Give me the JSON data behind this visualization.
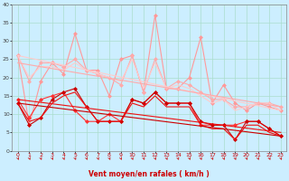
{
  "xlabel": "Vent moyen/en rafales ( km/h )",
  "background_color": "#cceeff",
  "grid_color": "#aaddcc",
  "xlim": [
    -0.5,
    23.5
  ],
  "ylim": [
    0,
    40
  ],
  "yticks": [
    0,
    5,
    10,
    15,
    20,
    25,
    30,
    35,
    40
  ],
  "xticks": [
    0,
    1,
    2,
    3,
    4,
    5,
    6,
    7,
    8,
    9,
    10,
    11,
    12,
    13,
    14,
    15,
    16,
    17,
    18,
    19,
    20,
    21,
    22,
    23
  ],
  "series": [
    {
      "x": [
        0,
        1,
        2,
        3,
        4,
        5,
        6,
        7,
        8,
        9,
        10,
        11,
        12,
        13,
        14,
        15,
        16,
        17,
        18,
        19,
        20,
        21,
        22,
        23
      ],
      "y": [
        26,
        7,
        19,
        24,
        21,
        32,
        22,
        22,
        15,
        25,
        26,
        16,
        37,
        17,
        17,
        20,
        31,
        13,
        18,
        13,
        11,
        13,
        12,
        11
      ],
      "color": "#ff9999",
      "linewidth": 0.8,
      "marker": "D",
      "markersize": 2,
      "linestyle": "-"
    },
    {
      "x": [
        0,
        1,
        2,
        3,
        4,
        5,
        6,
        7,
        8,
        9,
        10,
        11,
        12,
        13,
        14,
        15,
        16,
        17,
        18,
        19,
        20,
        21,
        22,
        23
      ],
      "y": [
        26,
        19,
        24,
        24,
        23,
        25,
        22,
        21,
        20,
        18,
        26,
        16,
        25,
        17,
        19,
        18,
        16,
        14,
        14,
        12,
        12,
        13,
        13,
        12
      ],
      "color": "#ffaaaa",
      "linewidth": 0.8,
      "marker": "D",
      "markersize": 2,
      "linestyle": "-"
    },
    {
      "x": [
        0,
        1,
        2,
        3,
        4,
        5,
        6,
        7,
        8,
        9,
        10,
        11,
        12,
        13,
        14,
        15,
        16,
        17,
        18,
        19,
        20,
        21,
        22,
        23
      ],
      "y": [
        26,
        20,
        23,
        23,
        22,
        24,
        22,
        21,
        20,
        19,
        25,
        17,
        24,
        17,
        18,
        17,
        15,
        13,
        14,
        11,
        12,
        13,
        13,
        11
      ],
      "color": "#ffcccc",
      "linewidth": 0.8,
      "marker": null,
      "markersize": 0,
      "linestyle": "-"
    },
    {
      "x": [
        0,
        23
      ],
      "y": [
        26,
        11
      ],
      "color": "#ffcccc",
      "linewidth": 0.8,
      "marker": null,
      "markersize": 0,
      "linestyle": "-"
    },
    {
      "x": [
        0,
        23
      ],
      "y": [
        24,
        12
      ],
      "color": "#ffaaaa",
      "linewidth": 0.8,
      "marker": null,
      "markersize": 0,
      "linestyle": "-"
    },
    {
      "x": [
        0,
        1,
        2,
        3,
        4,
        5,
        6,
        7,
        8,
        9,
        10,
        11,
        12,
        13,
        14,
        15,
        16,
        17,
        18,
        19,
        20,
        21,
        22,
        23
      ],
      "y": [
        14,
        9,
        14,
        15,
        16,
        11,
        8,
        8,
        10,
        8,
        14,
        13,
        16,
        13,
        13,
        13,
        7,
        7,
        7,
        7,
        8,
        8,
        6,
        4
      ],
      "color": "#ff3333",
      "linewidth": 0.8,
      "marker": "D",
      "markersize": 2,
      "linestyle": "-"
    },
    {
      "x": [
        0,
        1,
        2,
        3,
        4,
        5,
        6,
        7,
        8,
        9,
        10,
        11,
        12,
        13,
        14,
        15,
        16,
        17,
        18,
        19,
        20,
        21,
        22,
        23
      ],
      "y": [
        13,
        7,
        9,
        14,
        16,
        17,
        12,
        8,
        8,
        8,
        14,
        13,
        16,
        13,
        13,
        13,
        8,
        7,
        7,
        3,
        8,
        8,
        6,
        4
      ],
      "color": "#cc0000",
      "linewidth": 0.8,
      "marker": "D",
      "markersize": 2,
      "linestyle": "-"
    },
    {
      "x": [
        0,
        1,
        2,
        3,
        4,
        5,
        6,
        7,
        8,
        9,
        10,
        11,
        12,
        13,
        14,
        15,
        16,
        17,
        18,
        19,
        20,
        21,
        22,
        23
      ],
      "y": [
        13,
        8,
        9,
        13,
        15,
        16,
        12,
        8,
        8,
        8,
        13,
        12,
        15,
        12,
        12,
        12,
        7,
        6,
        6,
        3,
        7,
        7,
        5,
        4
      ],
      "color": "#ee1111",
      "linewidth": 0.8,
      "marker": null,
      "markersize": 0,
      "linestyle": "-"
    },
    {
      "x": [
        0,
        23
      ],
      "y": [
        13,
        4
      ],
      "color": "#cc0000",
      "linewidth": 0.8,
      "marker": null,
      "markersize": 0,
      "linestyle": "-"
    },
    {
      "x": [
        0,
        23
      ],
      "y": [
        14,
        5
      ],
      "color": "#ee1111",
      "linewidth": 0.8,
      "marker": null,
      "markersize": 0,
      "linestyle": "-"
    }
  ],
  "arrow_color": "#cc2222"
}
